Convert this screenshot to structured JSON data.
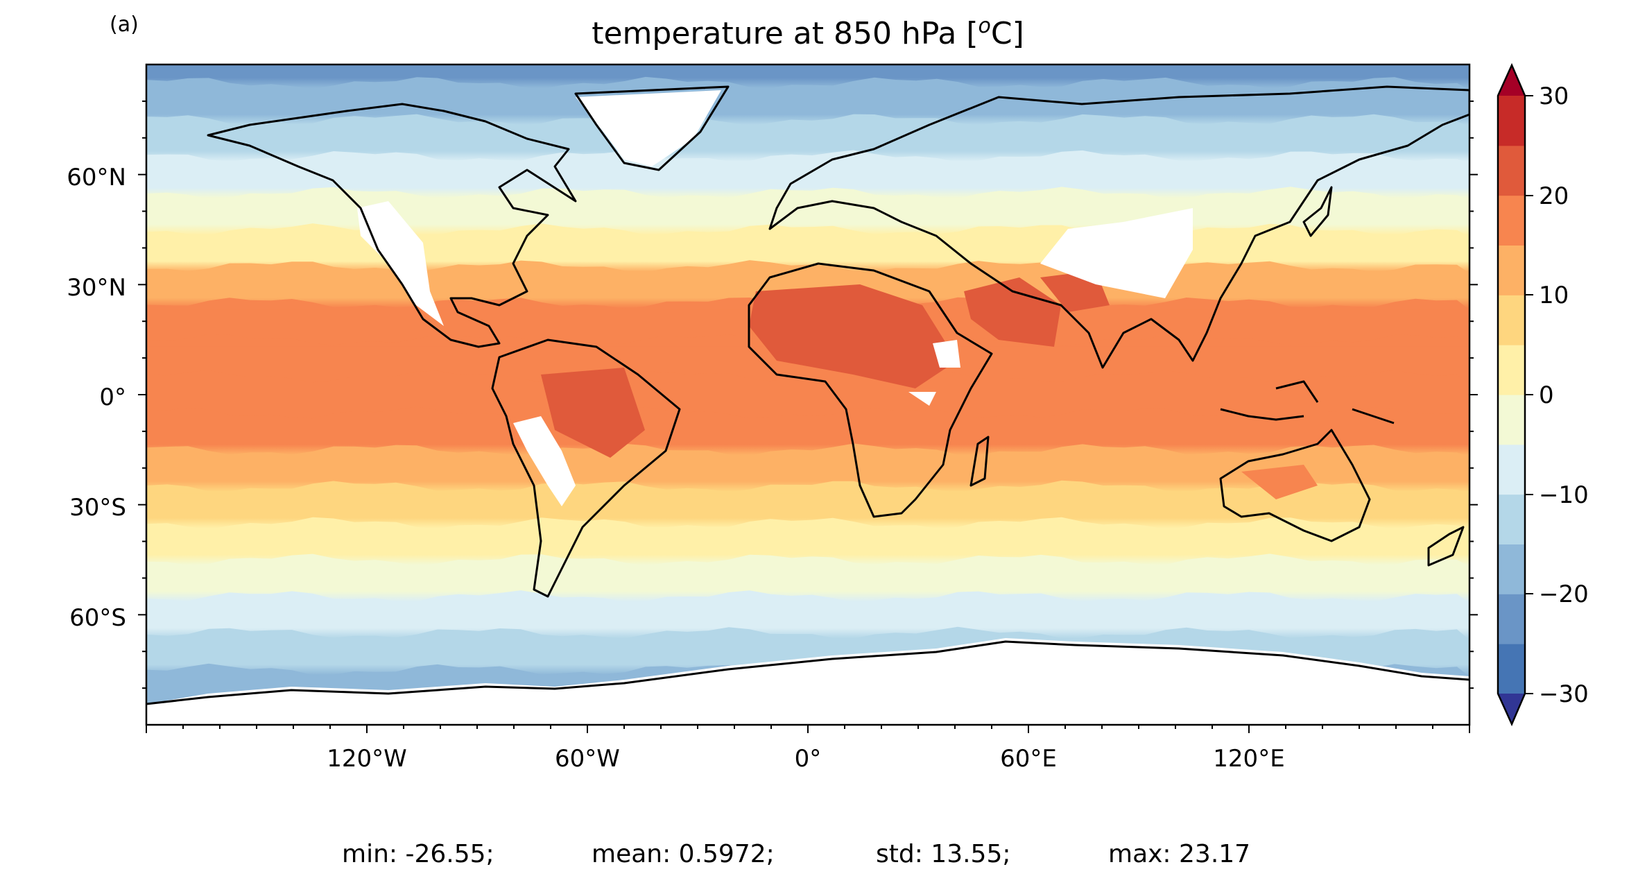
{
  "panel_label": "(a)",
  "title": {
    "text": "temperature at 850 hPa [",
    "sup": "o",
    "unit": "C]"
  },
  "lat_ticks": [
    "60°N",
    "30°N",
    "0°",
    "30°S",
    "60°S"
  ],
  "lon_ticks": [
    "120°W",
    "60°W",
    "0°",
    "60°E",
    "120°E"
  ],
  "colorbar": {
    "ticks": [
      "30",
      "20",
      "10",
      "0",
      "−10",
      "−20",
      "−30"
    ],
    "levels": [
      -30,
      -25,
      -20,
      -15,
      -10,
      -5,
      0,
      5,
      10,
      15,
      20,
      25,
      30
    ],
    "colors": [
      "#313695",
      "#4575b4",
      "#6a95c6",
      "#8fb8d9",
      "#b4d7e8",
      "#dbeef5",
      "#f3f9d5",
      "#fff0a8",
      "#fed67f",
      "#fdb165",
      "#f7854f",
      "#e05a3b",
      "#c72b28",
      "#a50026"
    ],
    "over_color": "#a50026",
    "under_color": "#313695",
    "extend": "both"
  },
  "stats": {
    "min": "min: -26.55;",
    "mean": "mean: 0.5972;",
    "std": "std: 13.55;",
    "max": "max: 23.17"
  },
  "chart_data": {
    "type": "heatmap",
    "variable": "temperature at 850 hPa",
    "units": "°C",
    "xlim": [
      -180,
      180
    ],
    "ylim": [
      -90,
      90
    ],
    "color_range": [
      -30,
      30
    ],
    "zonal_mean_profile": {
      "lat": [
        90,
        80,
        70,
        60,
        50,
        40,
        30,
        20,
        10,
        0,
        -10,
        -20,
        -30,
        -40,
        -50,
        -60,
        -70,
        -80,
        -90
      ],
      "temp_c": [
        -22,
        -18,
        -12,
        -7,
        -3,
        2,
        10,
        15,
        18,
        18,
        17,
        13,
        7,
        1,
        -4,
        -8,
        -14,
        -18,
        -22
      ]
    },
    "missing_regions": [
      "Greenland",
      "Rocky Mountains",
      "Andes",
      "Tibetan Plateau",
      "Ethiopian Highlands",
      "Antarctica"
    ],
    "statistics": {
      "min": -26.55,
      "mean": 0.5972,
      "std": 13.55,
      "max": 23.17
    }
  }
}
